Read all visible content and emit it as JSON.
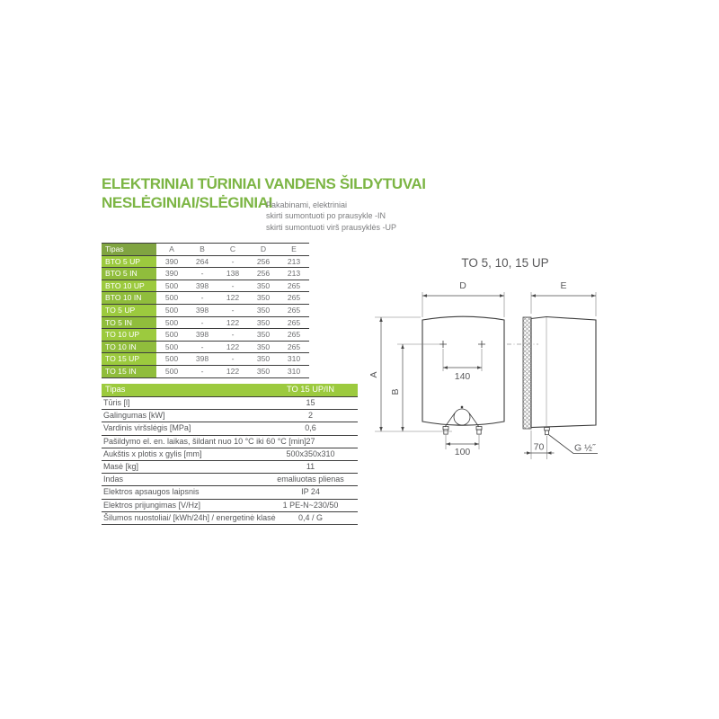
{
  "header": {
    "title_line1": "ELEKTRINIAI TŪRINIAI VANDENS ŠILDYTUVAI",
    "title_line2": "NESLĖGINIAI/SLĖGINIAI",
    "subtitle_lines": [
      "Pakabinami, elektriniai",
      "skirti sumontuoti po prausykle -IN",
      "skirti sumontuoti virš prausyklės -UP"
    ]
  },
  "dimensions_table": {
    "headers": [
      "Tipas",
      "A",
      "B",
      "C",
      "D",
      "E"
    ],
    "rows": [
      {
        "tipas": "BTO 5 UP",
        "values": [
          "390",
          "264",
          "-",
          "256",
          "213"
        ]
      },
      {
        "tipas": "BTO 5 IN",
        "values": [
          "390",
          "-",
          "138",
          "256",
          "213"
        ]
      },
      {
        "tipas": "BTO 10 UP",
        "values": [
          "500",
          "398",
          "-",
          "350",
          "265"
        ]
      },
      {
        "tipas": "BTO 10 IN",
        "values": [
          "500",
          "-",
          "122",
          "350",
          "265"
        ]
      },
      {
        "tipas": "TO 5 UP",
        "values": [
          "500",
          "398",
          "-",
          "350",
          "265"
        ]
      },
      {
        "tipas": "TO 5 IN",
        "values": [
          "500",
          "-",
          "122",
          "350",
          "265"
        ]
      },
      {
        "tipas": "TO 10 UP",
        "values": [
          "500",
          "398",
          "-",
          "350",
          "265"
        ]
      },
      {
        "tipas": "TO 10 IN",
        "values": [
          "500",
          "-",
          "122",
          "350",
          "265"
        ]
      },
      {
        "tipas": "TO 15 UP",
        "values": [
          "500",
          "398",
          "-",
          "350",
          "310"
        ]
      },
      {
        "tipas": "TO 15 IN",
        "values": [
          "500",
          "-",
          "122",
          "350",
          "310"
        ]
      }
    ]
  },
  "specs_table": {
    "header_label": "Tipas",
    "header_value": "TO 15 UP/IN",
    "rows": [
      {
        "label": "Tūris [l]",
        "value": "15"
      },
      {
        "label": "Galingumas [kW]",
        "value": "2"
      },
      {
        "label": "Vardinis viršslėgis [MPa]",
        "value": "0,6"
      },
      {
        "label": "Pašildymo el. en. laikas, šildant nuo 10 °C iki 60 °C [min]",
        "value": "27"
      },
      {
        "label": "Aukštis x plotis x gylis [mm]",
        "value": "500x350x310"
      },
      {
        "label": "Masė [kg]",
        "value": "11"
      },
      {
        "label": "Indas",
        "value": "emaliuotas plienas"
      },
      {
        "label": "Elektros apsaugos laipsnis",
        "value": "IP 24"
      },
      {
        "label": "Elektros prijungimas [V/Hz]",
        "value": "1 PE-N~230/50"
      },
      {
        "label": "Šilumos nuostoliai/ [kWh/24h] / energetinė klasė",
        "value": "0,4 / G"
      }
    ]
  },
  "drawing": {
    "title": "TO 5, 10, 15 UP",
    "labels": {
      "a": "A",
      "b": "B",
      "d": "D",
      "e": "E",
      "dim_140": "140",
      "dim_100": "100",
      "dim_70": "70",
      "thread": "G ½˝"
    }
  },
  "colors": {
    "title_green": "#7cb544",
    "table_header_green": "#80a441",
    "row_green": "#9cca3e",
    "row_green_alt": "#90bd3c",
    "specs_header_green": "#9cca3e",
    "text_gray": "#58585a",
    "number_gray": "#6f7072",
    "rule_dark": "#3d3d3d"
  }
}
